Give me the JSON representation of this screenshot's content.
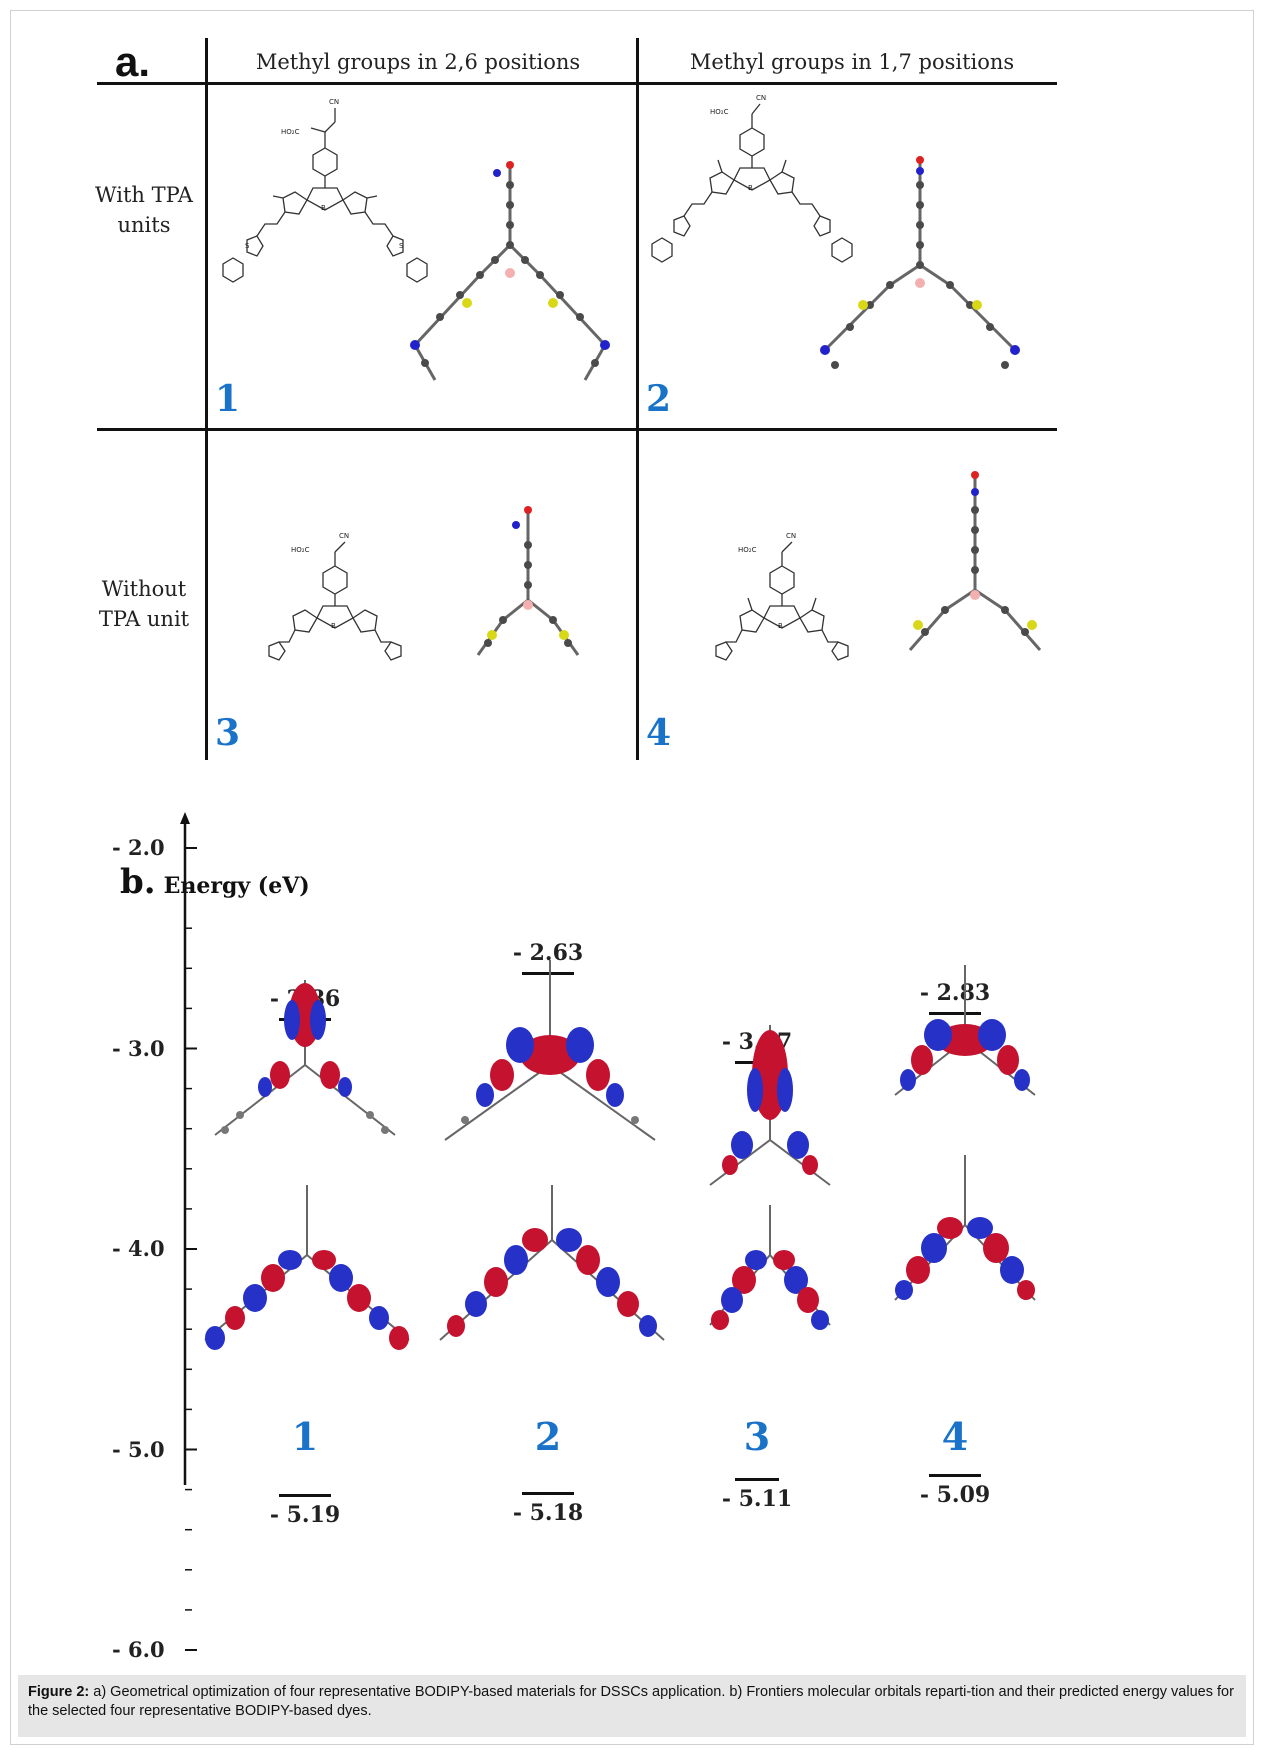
{
  "panel_a": {
    "label": "a.",
    "col_headers": [
      "Methyl groups in 2,6 positions",
      "Methyl groups in 1,7 positions"
    ],
    "row_headers": [
      "With TPA units",
      "Without TPA unit"
    ],
    "row_headers_lines": [
      [
        "With TPA",
        "units"
      ],
      [
        "Without",
        "TPA unit"
      ]
    ],
    "cell_numbers": [
      "1",
      "2",
      "3",
      "4"
    ],
    "structure_labels": {
      "acid": "HO₂C",
      "cn": "CN",
      "boron": "B",
      "fluorine": "F",
      "nitrogen": "N",
      "sulfur": "S"
    }
  },
  "panel_b": {
    "label": "b.",
    "axis_title": "Energy (eV)",
    "ticks": [
      "- 2.0",
      "- 3.0",
      "- 4.0",
      "- 5.0",
      "- 6.0"
    ],
    "dyes": [
      {
        "number": "1",
        "lumo": "- 2.86",
        "homo": "- 5.19"
      },
      {
        "number": "2",
        "lumo": "- 2.63",
        "homo": "- 5.18"
      },
      {
        "number": "3",
        "lumo": "- 3.07",
        "homo": "- 5.11"
      },
      {
        "number": "4",
        "lumo": "- 2.83",
        "homo": "- 5.09"
      }
    ]
  },
  "caption": {
    "label": "Figure 2:",
    "text": " a) Geometrical optimization of four representative BODIPY-based materials for DSSCs application. b) Frontiers molecular orbitals reparti-tion and their predicted energy values for the selected four representative BODIPY-based dyes."
  },
  "colors": {
    "lobe_red": "#c4122f",
    "lobe_blue": "#2631c8",
    "number_blue": "#1a73c9",
    "atom_grey": "#555555"
  }
}
